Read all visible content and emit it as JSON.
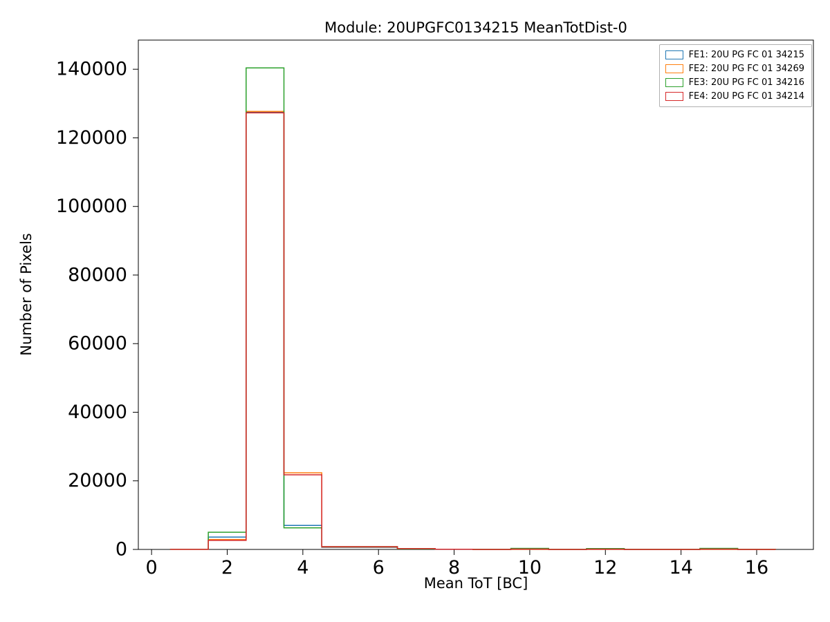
{
  "figure": {
    "title": "Module: 20UPGFC0134215 MeanTotDist-0",
    "xlabel": "Mean ToT [BC]",
    "ylabel": "Number of Pixels"
  },
  "chart_data": {
    "type": "step-histogram",
    "title": "Module: 20UPGFC0134215 MeanTotDist-0",
    "xlabel": "Mean ToT [BC]",
    "ylabel": "Number of Pixels",
    "grid": false,
    "legend_position": "upper right",
    "xlim": [
      -0.35,
      17.5
    ],
    "ylim": [
      0,
      148500
    ],
    "xticks": [
      0,
      2,
      4,
      6,
      8,
      10,
      12,
      14,
      16
    ],
    "yticks": [
      0,
      20000,
      40000,
      60000,
      80000,
      100000,
      120000,
      140000
    ],
    "bin_edges": [
      0.5,
      1.5,
      2.5,
      3.5,
      4.5,
      5.5,
      6.5,
      7.5,
      8.5,
      9.5,
      10.5,
      11.5,
      12.5,
      13.5,
      14.5,
      15.5,
      16.5
    ],
    "series": [
      {
        "name": "FE1: 20U PG FC 01 34215",
        "color": "#1f77b4",
        "counts": [
          30,
          3600,
          127500,
          7000,
          600,
          600,
          150,
          30,
          10,
          20,
          10,
          20,
          10,
          10,
          20,
          10
        ]
      },
      {
        "name": "FE2: 20U PG FC 01 34269",
        "color": "#ff7f0e",
        "counts": [
          30,
          2900,
          127700,
          22350,
          700,
          700,
          200,
          40,
          10,
          30,
          10,
          20,
          10,
          10,
          30,
          10
        ]
      },
      {
        "name": "FE3: 20U PG FC 01 34216",
        "color": "#2ca02c",
        "counts": [
          40,
          5000,
          140400,
          6300,
          800,
          800,
          150,
          40,
          20,
          300,
          20,
          250,
          20,
          20,
          300,
          20
        ]
      },
      {
        "name": "FE4: 20U PG FC 01 34214",
        "color": "#d62728",
        "counts": [
          30,
          2650,
          127300,
          21750,
          800,
          800,
          250,
          50,
          10,
          100,
          10,
          80,
          10,
          10,
          100,
          10
        ]
      }
    ]
  }
}
